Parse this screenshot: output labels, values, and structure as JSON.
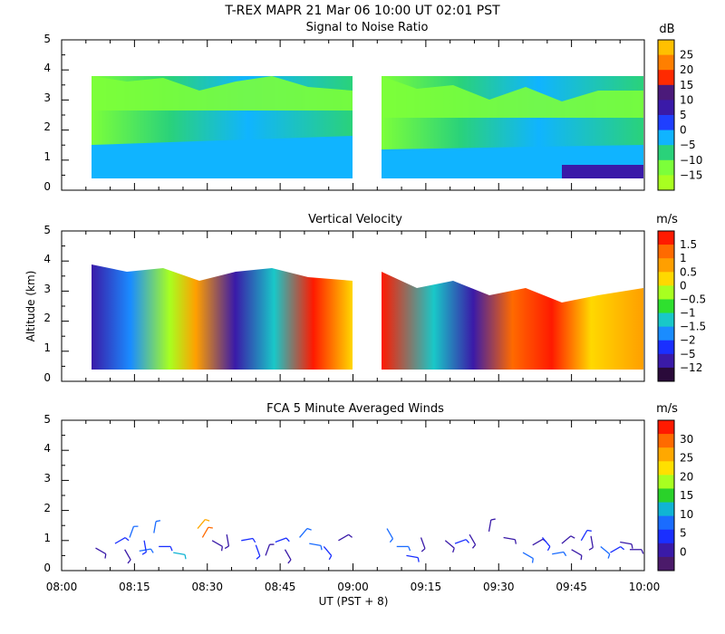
{
  "header": {
    "title": "T-REX   MAPR 21 Mar 06   10:00 UT   02:01   PST"
  },
  "chart_data": [
    {
      "type": "heatmap",
      "title": "Signal to Noise Ratio",
      "units": "dB",
      "ylim": [
        0,
        5
      ],
      "yticks": [
        0,
        1,
        2,
        3,
        4,
        5
      ],
      "xlim": [
        0,
        120
      ],
      "data_gap_minutes": [
        60,
        65
      ],
      "colorbar": {
        "labels": [
          "25",
          "20",
          "15",
          "10",
          "5",
          "0",
          "−5",
          "−10",
          "−15"
        ],
        "colors": [
          "#ffc000",
          "#ff7f00",
          "#ff2a00",
          "#4b1a7a",
          "#3a1aa8",
          "#1f3fff",
          "#10b4ff",
          "#2ad27a",
          "#7cff3a",
          "#a8ff20"
        ]
      }
    },
    {
      "type": "heatmap",
      "title": "Vertical Velocity",
      "units": "m/s",
      "ylabel": "Altitude (km)",
      "ylim": [
        0,
        5
      ],
      "yticks": [
        0,
        1,
        2,
        3,
        4,
        5
      ],
      "xlim": [
        0,
        120
      ],
      "data_gap_minutes": [
        60,
        65
      ],
      "colorbar": {
        "labels": [
          "1.5",
          "1",
          "0.5",
          "0",
          "−0.5",
          "−1",
          "−1.5",
          "−2",
          "−5",
          "−12"
        ],
        "colors": [
          "#ff1a00",
          "#ff6a00",
          "#ff9f00",
          "#ffd800",
          "#a8ff20",
          "#2fe02f",
          "#19c8c8",
          "#1a8cff",
          "#1a2fff",
          "#3a1aa8",
          "#2a0a3a"
        ]
      }
    },
    {
      "type": "scatter",
      "title": "FCA 5 Minute Averaged Winds",
      "units": "m/s",
      "xlabel": "UT  (PST + 8)",
      "ylim": [
        0,
        5
      ],
      "yticks": [
        0,
        1,
        2,
        3,
        4,
        5
      ],
      "xlim": [
        0,
        120
      ],
      "xtick_labels": [
        "08:00",
        "08:15",
        "08:30",
        "08:45",
        "09:00",
        "09:15",
        "09:30",
        "09:45",
        "10:00"
      ],
      "colorbar": {
        "labels": [
          "30",
          "25",
          "20",
          "15",
          "10",
          "5",
          "0"
        ],
        "colors": [
          "#ff1a00",
          "#ff6a00",
          "#ffa800",
          "#ffe000",
          "#a8ff20",
          "#2ad22a",
          "#10b4d4",
          "#1a6cff",
          "#1a2fff",
          "#3a1aa8",
          "#4b1a6a"
        ]
      },
      "barbs": [
        {
          "t": 7,
          "z": 0.75,
          "speed": 3,
          "dir": 120
        },
        {
          "t": 11,
          "z": 0.9,
          "speed": 5,
          "dir": 60
        },
        {
          "t": 13,
          "z": 0.7,
          "speed": 4,
          "dir": 150
        },
        {
          "t": 14,
          "z": 1.1,
          "speed": 8,
          "dir": 20
        },
        {
          "t": 16,
          "z": 0.65,
          "speed": 10,
          "dir": 80
        },
        {
          "t": 17,
          "z": 1.0,
          "speed": 6,
          "dir": 170
        },
        {
          "t": 19,
          "z": 1.25,
          "speed": 9,
          "dir": 10
        },
        {
          "t": 20,
          "z": 0.8,
          "speed": 7,
          "dir": 90
        },
        {
          "t": 23,
          "z": 0.6,
          "speed": 12,
          "dir": 100
        },
        {
          "t": 28,
          "z": 1.4,
          "speed": 24,
          "dir": 40
        },
        {
          "t": 29,
          "z": 1.1,
          "speed": 26,
          "dir": 30
        },
        {
          "t": 31,
          "z": 1.0,
          "speed": 3,
          "dir": 120
        },
        {
          "t": 34,
          "z": 1.2,
          "speed": 4,
          "dir": 170
        },
        {
          "t": 37,
          "z": 1.0,
          "speed": 5,
          "dir": 80
        },
        {
          "t": 40,
          "z": 0.85,
          "speed": 6,
          "dir": 160
        },
        {
          "t": 42,
          "z": 0.5,
          "speed": 4,
          "dir": 20
        },
        {
          "t": 44,
          "z": 0.95,
          "speed": 5,
          "dir": 70
        },
        {
          "t": 46,
          "z": 0.7,
          "speed": 3,
          "dir": 150
        },
        {
          "t": 49,
          "z": 1.1,
          "speed": 9,
          "dir": 40
        },
        {
          "t": 51,
          "z": 0.9,
          "speed": 10,
          "dir": 100
        },
        {
          "t": 54,
          "z": 0.8,
          "speed": 5,
          "dir": 140
        },
        {
          "t": 57,
          "z": 1.0,
          "speed": 4,
          "dir": 60
        },
        {
          "t": 67,
          "z": 1.4,
          "speed": 10,
          "dir": 150
        },
        {
          "t": 69,
          "z": 0.8,
          "speed": 8,
          "dir": 90
        },
        {
          "t": 71,
          "z": 0.5,
          "speed": 7,
          "dir": 100
        },
        {
          "t": 74,
          "z": 1.1,
          "speed": 4,
          "dir": 160
        },
        {
          "t": 79,
          "z": 1.0,
          "speed": 3,
          "dir": 130
        },
        {
          "t": 81,
          "z": 0.9,
          "speed": 5,
          "dir": 70
        },
        {
          "t": 84,
          "z": 1.2,
          "speed": 2,
          "dir": 150
        },
        {
          "t": 88,
          "z": 1.3,
          "speed": 4,
          "dir": 10
        },
        {
          "t": 91,
          "z": 1.1,
          "speed": 3,
          "dir": 100
        },
        {
          "t": 95,
          "z": 0.6,
          "speed": 10,
          "dir": 120
        },
        {
          "t": 97,
          "z": 0.85,
          "speed": 4,
          "dir": 60
        },
        {
          "t": 99,
          "z": 1.1,
          "speed": 5,
          "dir": 140
        },
        {
          "t": 101,
          "z": 0.55,
          "speed": 9,
          "dir": 80
        },
        {
          "t": 103,
          "z": 0.9,
          "speed": 3,
          "dir": 50
        },
        {
          "t": 105,
          "z": 0.7,
          "speed": 4,
          "dir": 120
        },
        {
          "t": 107,
          "z": 1.0,
          "speed": 5,
          "dir": 30
        },
        {
          "t": 109,
          "z": 1.15,
          "speed": 3,
          "dir": 170
        },
        {
          "t": 111,
          "z": 0.8,
          "speed": 8,
          "dir": 130
        },
        {
          "t": 113,
          "z": 0.6,
          "speed": 6,
          "dir": 60
        },
        {
          "t": 115,
          "z": 0.95,
          "speed": 4,
          "dir": 100
        },
        {
          "t": 117,
          "z": 0.7,
          "speed": 3,
          "dir": 90
        }
      ]
    }
  ]
}
